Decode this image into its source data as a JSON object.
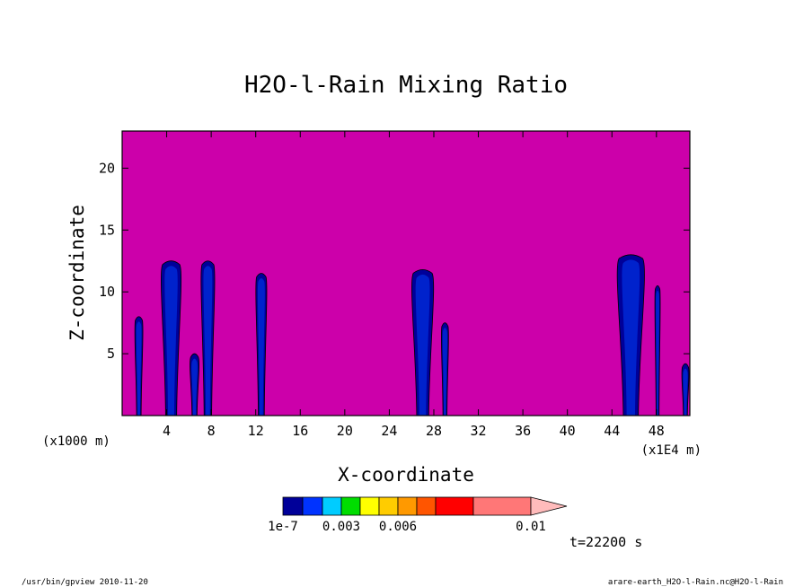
{
  "chart_data": {
    "type": "heatmap",
    "title": "H2O-l-Rain Mixing Ratio",
    "xlabel": "X-coordinate",
    "ylabel": "Z-coordinate",
    "x_unit_left": "(x1000 m)",
    "x_unit_right": "(x1E4 m)",
    "xlim": [
      0,
      51
    ],
    "ylim": [
      0,
      23
    ],
    "xticks": [
      4,
      8,
      12,
      16,
      20,
      24,
      28,
      32,
      36,
      40,
      44,
      48
    ],
    "yticks": [
      5,
      10,
      15,
      20
    ],
    "time_label": "t=22200 s",
    "background_color": "#cc00aa",
    "colorbar": {
      "levels": [
        1e-07,
        0.001,
        0.002,
        0.003,
        0.004,
        0.005,
        0.006,
        0.007,
        0.008,
        0.009,
        0.01
      ],
      "colors": [
        "#000099",
        "#0033ff",
        "#00ccff",
        "#00dd00",
        "#ffff00",
        "#ffcc00",
        "#ff9900",
        "#ff5500",
        "#ff0000",
        "#ff7777",
        "#ffbbbb"
      ],
      "tick_labels": [
        {
          "value": 1e-07,
          "label": "1e-7"
        },
        {
          "value": 0.003,
          "label": "0.003"
        },
        {
          "value": 0.006,
          "label": "0.006"
        },
        {
          "value": 0.01,
          "label": "0.01"
        }
      ]
    },
    "rain_columns": [
      {
        "x": 1.5,
        "z_top": 8.0,
        "width": 0.9
      },
      {
        "x": 4.4,
        "z_top": 12.5,
        "width": 2.2
      },
      {
        "x": 6.5,
        "z_top": 5.0,
        "width": 1.0
      },
      {
        "x": 7.7,
        "z_top": 12.5,
        "width": 1.5
      },
      {
        "x": 12.5,
        "z_top": 11.5,
        "width": 1.2
      },
      {
        "x": 27.0,
        "z_top": 11.8,
        "width": 2.4
      },
      {
        "x": 29.0,
        "z_top": 7.5,
        "width": 0.8
      },
      {
        "x": 45.7,
        "z_top": 13.0,
        "width": 3.0
      },
      {
        "x": 48.1,
        "z_top": 10.5,
        "width": 0.6
      },
      {
        "x": 50.6,
        "z_top": 4.2,
        "width": 0.8
      }
    ]
  },
  "footer": {
    "left": "/usr/bin/gpview  2010-11-20",
    "right": "arare-earth_H2O-l-Rain.nc@H2O-l-Rain"
  }
}
